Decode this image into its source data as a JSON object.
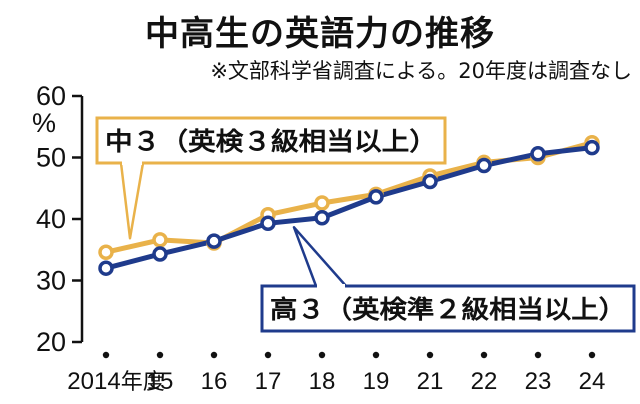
{
  "title": "中高生の英語力の推移",
  "subtitle": "※文部科学省調査による。20年度は調査なし",
  "y_unit": "%",
  "x_year_suffix": "年度",
  "chart_data": {
    "type": "line",
    "title": "中高生の英語力の推移",
    "subtitle": "※文部科学省調査による。20年度は調査なし",
    "categories": [
      "2014",
      "15",
      "16",
      "17",
      "18",
      "19",
      "21",
      "22",
      "23",
      "24"
    ],
    "ylabel": "%",
    "ylim": [
      20,
      60
    ],
    "yticks": [
      20,
      30,
      40,
      50,
      60
    ],
    "grid": false,
    "series": [
      {
        "name": "中３（英検３級相当以上）",
        "color": "#E9B24A",
        "values": [
          34.6,
          36.6,
          36.1,
          40.7,
          42.6,
          44.0,
          47.0,
          49.2,
          50.0,
          52.4
        ]
      },
      {
        "name": "高３（英検準２級相当以上）",
        "color": "#1F3B8C",
        "values": [
          32.0,
          34.3,
          36.4,
          39.3,
          40.2,
          43.6,
          46.1,
          48.7,
          50.6,
          51.6
        ]
      }
    ]
  }
}
